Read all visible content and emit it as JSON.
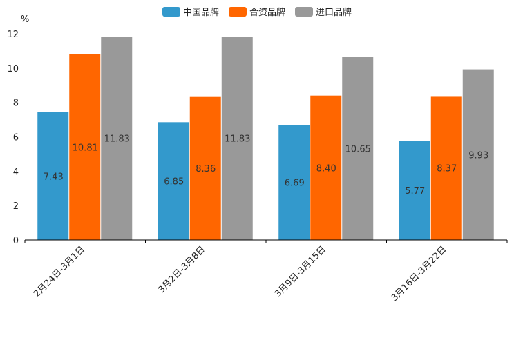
{
  "chart_data": {
    "type": "bar",
    "title": "",
    "ylabel": "%",
    "xlabel": "",
    "ylim": [
      0,
      12
    ],
    "yticks": [
      0,
      2,
      4,
      6,
      8,
      10,
      12
    ],
    "categories": [
      "2月24日-3月1日",
      "3月2日-3月8日",
      "3月9日-3月15日",
      "3月16日-3月22日"
    ],
    "series": [
      {
        "name": "中国品牌",
        "color": "#3399cc",
        "values": [
          7.43,
          6.85,
          6.69,
          5.77
        ],
        "labels": [
          "7.43",
          "6.85",
          "6.69",
          "5.77"
        ]
      },
      {
        "name": "合资品牌",
        "color": "#ff6600",
        "values": [
          10.81,
          8.36,
          8.4,
          8.37
        ],
        "labels": [
          "10.81",
          "8.36",
          "8.40",
          "8.37"
        ]
      },
      {
        "name": "进口品牌",
        "color": "#999999",
        "values": [
          11.83,
          11.83,
          10.65,
          9.93
        ],
        "labels": [
          "11.83",
          "11.83",
          "10.65",
          "9.93"
        ]
      }
    ],
    "legend_position": "top-center",
    "grid": false
  }
}
